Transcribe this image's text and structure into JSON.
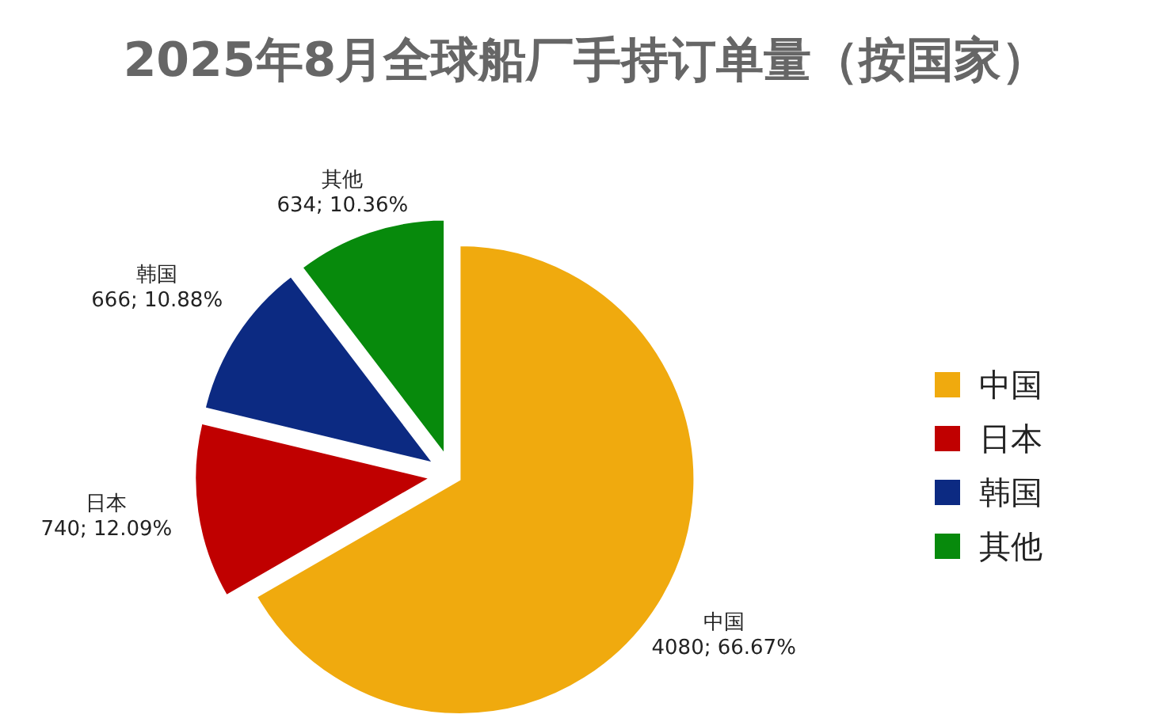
{
  "chart_data": {
    "type": "pie",
    "title": "2025年8月全球船厂手持订单量（按国家）",
    "categories": [
      "中国",
      "日本",
      "韩国",
      "其他"
    ],
    "values": [
      4080,
      740,
      666,
      634
    ],
    "colors": [
      "#f0aa0e",
      "#c00000",
      "#0c2a82",
      "#078a0c"
    ],
    "value_labels": [
      "4080; 66.67%",
      "740; 12.09%",
      "666; 10.88%",
      "634; 10.36%"
    ],
    "legend": "right"
  }
}
